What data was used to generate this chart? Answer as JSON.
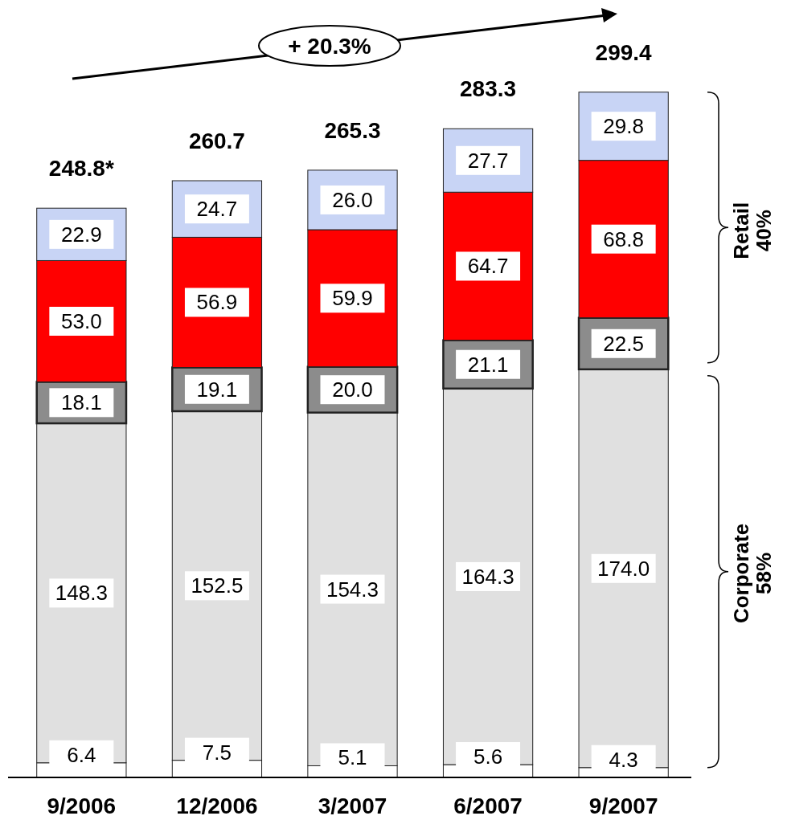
{
  "chart_data": {
    "type": "bar",
    "stacked": true,
    "tick_labels": "x",
    "ylim": [
      0,
      300
    ],
    "categories": [
      "9/2006",
      "12/2006",
      "3/2007",
      "6/2007",
      "9/2007"
    ],
    "series": [
      {
        "color": "#ffffff",
        "values": [
          6.4,
          7.5,
          5.1,
          5.6,
          4.3
        ],
        "value_labels": [
          "6.4",
          "7.5",
          "5.1",
          "5.6",
          "4.3"
        ]
      },
      {
        "color": "#e0e0e0",
        "values": [
          148.3,
          152.5,
          154.3,
          164.3,
          174.0
        ],
        "value_labels": [
          "148.3",
          "152.5",
          "154.3",
          "164.3",
          "174.0"
        ]
      },
      {
        "color": "#8c8c8c",
        "values": [
          18.1,
          19.1,
          20.0,
          21.1,
          22.5
        ],
        "value_labels": [
          "18.1",
          "19.1",
          "20.0",
          "21.1",
          "22.5"
        ]
      },
      {
        "color": "#ff0000",
        "values": [
          53.0,
          56.9,
          59.9,
          64.7,
          68.8
        ],
        "value_labels": [
          "53.0",
          "56.9",
          "59.9",
          "64.7",
          "68.8"
        ]
      },
      {
        "color": "#c8d4f5",
        "values": [
          22.9,
          24.7,
          26.0,
          27.7,
          29.8
        ],
        "value_labels": [
          "22.9",
          "24.7",
          "26.0",
          "27.7",
          "29.8"
        ]
      }
    ],
    "totals": [
      "248.8*",
      "260.7",
      "265.3",
      "283.3",
      "299.4"
    ],
    "annotations": [
      "+ 20.3%",
      "Retail 40%",
      "Corporate 58%"
    ]
  }
}
